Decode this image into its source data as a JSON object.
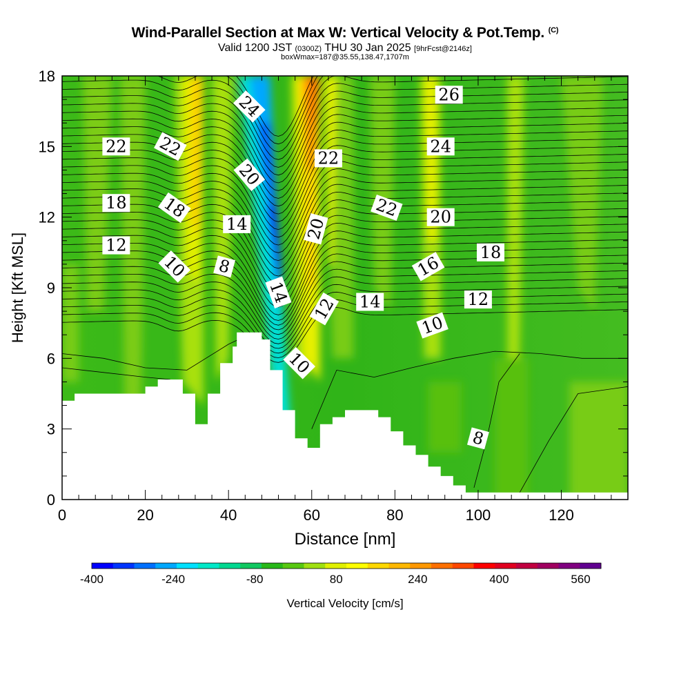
{
  "header": {
    "title": "Wind-Parallel Section at Max W: Vertical Velocity & Pot.Temp.",
    "copyright": "(C)",
    "valid_prefix": "Valid 1200 JST",
    "valid_utc": "(0300Z)",
    "valid_date": "THU 30 Jan 2025",
    "forecast": "[9hrFcst@2146z]",
    "box_info": "boxWmax=187@35.55,138.47,1707m"
  },
  "chart_data": {
    "type": "heatmap",
    "xlabel": "Distance [nm]",
    "ylabel": "Height [Kft MSL]",
    "xlim": [
      0,
      136
    ],
    "ylim": [
      0,
      18
    ],
    "x_ticks": [
      0,
      20,
      40,
      60,
      80,
      100,
      120
    ],
    "y_ticks": [
      0,
      3,
      6,
      9,
      12,
      15,
      18
    ],
    "colorbar": {
      "label": "Vertical Velocity [cm/s]",
      "min": -400,
      "max": 600,
      "tick_labels": [
        -400,
        -240,
        -80,
        80,
        240,
        400,
        560
      ],
      "colors": [
        "#0000ff",
        "#0035ff",
        "#0070ff",
        "#00a8ff",
        "#00e0ff",
        "#00e8c8",
        "#00d890",
        "#10c860",
        "#28b818",
        "#58c810",
        "#a0e010",
        "#e0f000",
        "#ffff00",
        "#ffd800",
        "#ffb800",
        "#ff9800",
        "#ff7000",
        "#ff4800",
        "#ff0000",
        "#e00020",
        "#c00040",
        "#a00060",
        "#800080",
        "#600090"
      ]
    },
    "terrain_kft": [
      [
        0,
        4.2
      ],
      [
        3,
        4.2
      ],
      [
        3,
        4.5
      ],
      [
        20,
        4.5
      ],
      [
        20,
        4.8
      ],
      [
        23,
        4.8
      ],
      [
        23,
        5.1
      ],
      [
        29,
        5.1
      ],
      [
        29,
        4.5
      ],
      [
        32,
        4.5
      ],
      [
        32,
        3.2
      ],
      [
        35,
        3.2
      ],
      [
        35,
        4.5
      ],
      [
        38,
        4.5
      ],
      [
        38,
        5.8
      ],
      [
        41,
        5.8
      ],
      [
        41,
        6.5
      ],
      [
        42,
        6.5
      ],
      [
        42,
        7.1
      ],
      [
        48,
        7.1
      ],
      [
        48,
        6.8
      ],
      [
        50,
        6.8
      ],
      [
        50,
        5.5
      ],
      [
        53,
        5.5
      ],
      [
        53,
        3.8
      ],
      [
        56,
        3.8
      ],
      [
        56,
        2.6
      ],
      [
        59,
        2.6
      ],
      [
        59,
        2.2
      ],
      [
        62,
        2.2
      ],
      [
        62,
        3.2
      ],
      [
        65,
        3.2
      ],
      [
        65,
        3.5
      ],
      [
        68,
        3.5
      ],
      [
        68,
        3.8
      ],
      [
        76,
        3.8
      ],
      [
        76,
        3.5
      ],
      [
        79,
        3.5
      ],
      [
        79,
        2.9
      ],
      [
        82,
        2.9
      ],
      [
        82,
        2.3
      ],
      [
        85,
        2.3
      ],
      [
        85,
        1.9
      ],
      [
        88,
        1.9
      ],
      [
        88,
        1.4
      ],
      [
        91,
        1.4
      ],
      [
        91,
        1.0
      ],
      [
        94,
        1.0
      ],
      [
        94,
        0.6
      ],
      [
        97,
        0.6
      ],
      [
        97,
        0.3
      ],
      [
        136,
        0.3
      ]
    ],
    "theta_contour_labels": [
      {
        "value": "22",
        "x": 13,
        "y": 15.0,
        "rot": 0
      },
      {
        "value": "22",
        "x": 26,
        "y": 15.0,
        "rot": 28
      },
      {
        "value": "18",
        "x": 13,
        "y": 12.6,
        "rot": 0
      },
      {
        "value": "18",
        "x": 27,
        "y": 12.4,
        "rot": 35
      },
      {
        "value": "12",
        "x": 13,
        "y": 10.8,
        "rot": 0
      },
      {
        "value": "10",
        "x": 27,
        "y": 9.9,
        "rot": 45
      },
      {
        "value": "24",
        "x": 45,
        "y": 16.7,
        "rot": 45
      },
      {
        "value": "20",
        "x": 45,
        "y": 13.8,
        "rot": 50
      },
      {
        "value": "14",
        "x": 42,
        "y": 11.7,
        "rot": 0
      },
      {
        "value": "8",
        "x": 39,
        "y": 9.9,
        "rot": 15
      },
      {
        "value": "14",
        "x": 52,
        "y": 8.8,
        "rot": 70
      },
      {
        "value": "10",
        "x": 57,
        "y": 5.8,
        "rot": 45
      },
      {
        "value": "22",
        "x": 64,
        "y": 14.5,
        "rot": 0
      },
      {
        "value": "20",
        "x": 61,
        "y": 11.5,
        "rot": -75
      },
      {
        "value": "12",
        "x": 63,
        "y": 8.1,
        "rot": -60
      },
      {
        "value": "14",
        "x": 74,
        "y": 8.4,
        "rot": 0
      },
      {
        "value": "22",
        "x": 78,
        "y": 12.4,
        "rot": 20
      },
      {
        "value": "26",
        "x": 93,
        "y": 17.2,
        "rot": 0
      },
      {
        "value": "24",
        "x": 91,
        "y": 15.0,
        "rot": 0
      },
      {
        "value": "20",
        "x": 91,
        "y": 12.0,
        "rot": 0
      },
      {
        "value": "16",
        "x": 88,
        "y": 9.9,
        "rot": -30
      },
      {
        "value": "10",
        "x": 89,
        "y": 7.4,
        "rot": -20
      },
      {
        "value": "18",
        "x": 103,
        "y": 10.5,
        "rot": 0
      },
      {
        "value": "12",
        "x": 100,
        "y": 8.5,
        "rot": 0
      },
      {
        "value": "8",
        "x": 100,
        "y": 2.6,
        "rot": 15
      }
    ]
  }
}
